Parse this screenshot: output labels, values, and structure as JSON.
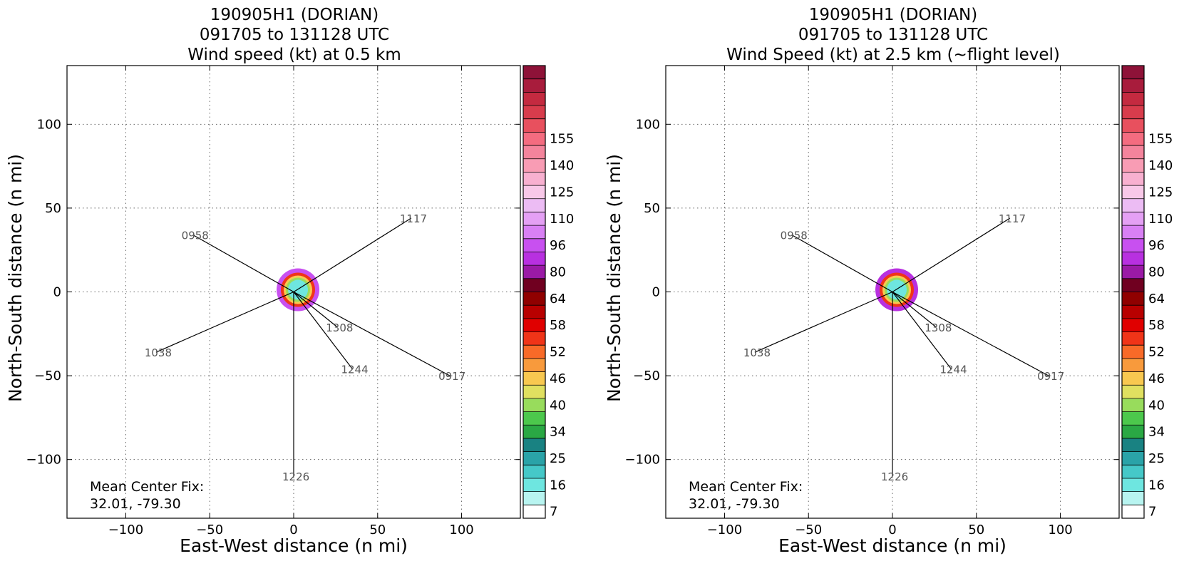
{
  "chart_data": [
    {
      "type": "scatter",
      "title_lines": [
        "190905H1 (DORIAN)",
        "091705 to 131128 UTC",
        "Wind speed (kt) at 0.5 km"
      ],
      "xlabel": "East-West distance (n mi)",
      "ylabel": "North-South distance (n mi)",
      "xlim": [
        -135,
        135
      ],
      "ylim": [
        -135,
        135
      ],
      "xticks": [
        -100,
        -50,
        0,
        50,
        100
      ],
      "yticks": [
        -100,
        -50,
        0,
        50,
        100
      ],
      "grid": true,
      "colorbar": {
        "levels": [
          7,
          16,
          25,
          34,
          40,
          46,
          52,
          58,
          64,
          80,
          96,
          110,
          125,
          140,
          155
        ]
      },
      "annotation": [
        "Mean Center Fix:",
        "32.01, -79.30"
      ],
      "pass_labels": [
        {
          "text": "0917",
          "x": 93,
          "y": -50
        },
        {
          "text": "1038",
          "x": -82,
          "y": -36
        },
        {
          "text": "1244",
          "x": 35,
          "y": -46
        },
        {
          "text": "1308",
          "x": 26,
          "y": -21
        },
        {
          "text": "1226",
          "x": 0,
          "y": -110
        },
        {
          "text": "0958",
          "x": -60,
          "y": 34
        },
        {
          "text": "1117",
          "x": 70,
          "y": 44
        }
      ]
    },
    {
      "type": "scatter",
      "title_lines": [
        "190905H1 (DORIAN)",
        "091705 to 131128 UTC",
        "Wind Speed (kt) at 2.5 km (~flight level)"
      ],
      "xlabel": "East-West distance (n mi)",
      "ylabel": "North-South distance (n mi)",
      "xlim": [
        -135,
        135
      ],
      "ylim": [
        -135,
        135
      ],
      "xticks": [
        -100,
        -50,
        0,
        50,
        100
      ],
      "yticks": [
        -100,
        -50,
        0,
        50,
        100
      ],
      "grid": true,
      "colorbar": {
        "levels": [
          7,
          16,
          25,
          34,
          40,
          46,
          52,
          58,
          64,
          80,
          96,
          110,
          125,
          140,
          155
        ]
      },
      "annotation": [
        "Mean Center Fix:",
        "32.01, -79.30"
      ],
      "pass_labels": [
        {
          "text": "0917",
          "x": 93,
          "y": -50
        },
        {
          "text": "1038",
          "x": -82,
          "y": -36
        },
        {
          "text": "1244",
          "x": 35,
          "y": -46
        },
        {
          "text": "1308",
          "x": 26,
          "y": -21
        },
        {
          "text": "1226",
          "x": 0,
          "y": -110
        },
        {
          "text": "0958",
          "x": -60,
          "y": 34
        },
        {
          "text": "1117",
          "x": 70,
          "y": 44
        }
      ]
    }
  ],
  "colorbar_colors": [
    "#ffffff",
    "#b8f4f0",
    "#6ee6e0",
    "#45c8c8",
    "#2aa3a8",
    "#198282",
    "#2aa844",
    "#4cc84c",
    "#98dc5c",
    "#e0e060",
    "#f8c850",
    "#f89a3c",
    "#f86a28",
    "#f03418",
    "#e00000",
    "#b80000",
    "#900000",
    "#700020",
    "#9a1aa6",
    "#b830e0",
    "#c850f0",
    "#d880f4",
    "#e4a0f4",
    "#ecbcf4",
    "#f8c8e8",
    "#f8b0d0",
    "#f89cb4",
    "#f4849c",
    "#f46c80",
    "#e8505e",
    "#d83c4c",
    "#c42a40",
    "#a81c3c",
    "#8e1238"
  ]
}
